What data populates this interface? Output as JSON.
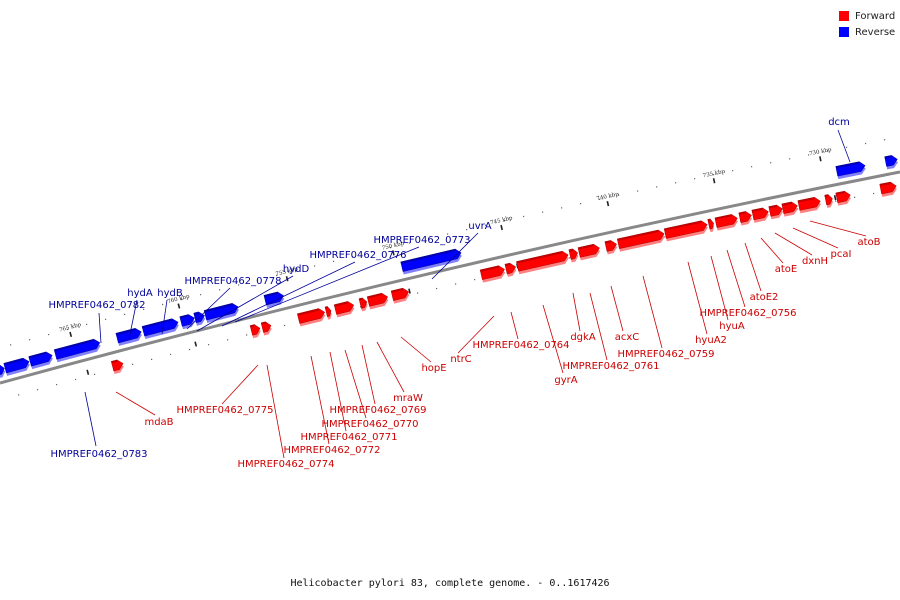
{
  "caption": "Helicobacter pylori 83, complete genome. - 0..1617426",
  "legend": [
    {
      "label": "Forward",
      "color": "#ff0000"
    },
    {
      "label": "Reverse",
      "color": "#0000ff"
    }
  ],
  "colors": {
    "forward": "#ff0000",
    "forward_label": "#cc0000",
    "reverse": "#0000ff",
    "reverse_label": "#000099",
    "backbone": "#888888"
  },
  "ticks": [
    "765 kbp",
    "760 kbp",
    "755 kbp",
    "750 kbp",
    "745 kbp",
    "740 kbp",
    "735 kbp",
    "730 kbp"
  ],
  "reverse_genes": [
    "HMPREF0462_0783",
    "HMPREF0462_0782",
    "hydA",
    "hydB",
    "HMPREF0462_0778",
    "hydD",
    "HMPREF0462_0776",
    "HMPREF0462_0773",
    "uvrA",
    "dcm"
  ],
  "forward_genes": [
    "mdaB",
    "HMPREF0462_0775",
    "HMPREF0462_0774",
    "HMPREF0462_0772",
    "HMPREF0462_0771",
    "HMPREF0462_0770",
    "HMPREF0462_0769",
    "mraW",
    "hopE",
    "ntrC",
    "HMPREF0462_0764",
    "gyrA",
    "HMPREF0462_0761",
    "dgkA",
    "acxC",
    "HMPREF0462_0759",
    "hyuA2",
    "hyuA",
    "HMPREF0462_0756",
    "atoE2",
    "atoE",
    "dxnH",
    "pcaI",
    "atoB"
  ]
}
